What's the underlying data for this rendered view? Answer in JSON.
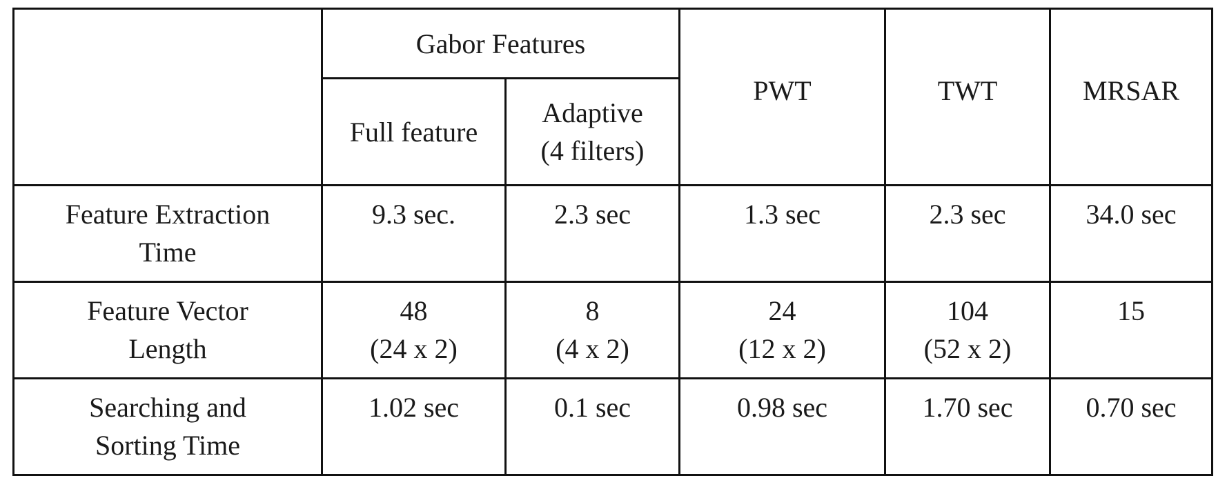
{
  "chart_data": {
    "type": "table",
    "header": {
      "group_label": "Gabor Features",
      "group_sub": [
        "Full feature",
        [
          "Adaptive",
          "(4 filters)"
        ]
      ],
      "columns": [
        "PWT",
        "TWT",
        "MRSAR"
      ]
    },
    "rows": [
      {
        "label": [
          "Feature Extraction",
          "Time"
        ],
        "cells": [
          [
            "9.3 sec."
          ],
          [
            "2.3 sec"
          ],
          [
            "1.3 sec"
          ],
          [
            "2.3 sec"
          ],
          [
            "34.0 sec"
          ]
        ]
      },
      {
        "label": [
          "Feature Vector",
          "Length"
        ],
        "cells": [
          [
            "48",
            "(24 x 2)"
          ],
          [
            "8",
            "(4 x 2)"
          ],
          [
            "24",
            "(12 x 2)"
          ],
          [
            "104",
            "(52 x 2)"
          ],
          [
            "15"
          ]
        ]
      },
      {
        "label": [
          "Searching and",
          "Sorting Time"
        ],
        "cells": [
          [
            "1.02 sec"
          ],
          [
            "0.1 sec"
          ],
          [
            "0.98 sec"
          ],
          [
            "1.70 sec"
          ],
          [
            "0.70 sec"
          ]
        ]
      }
    ]
  }
}
